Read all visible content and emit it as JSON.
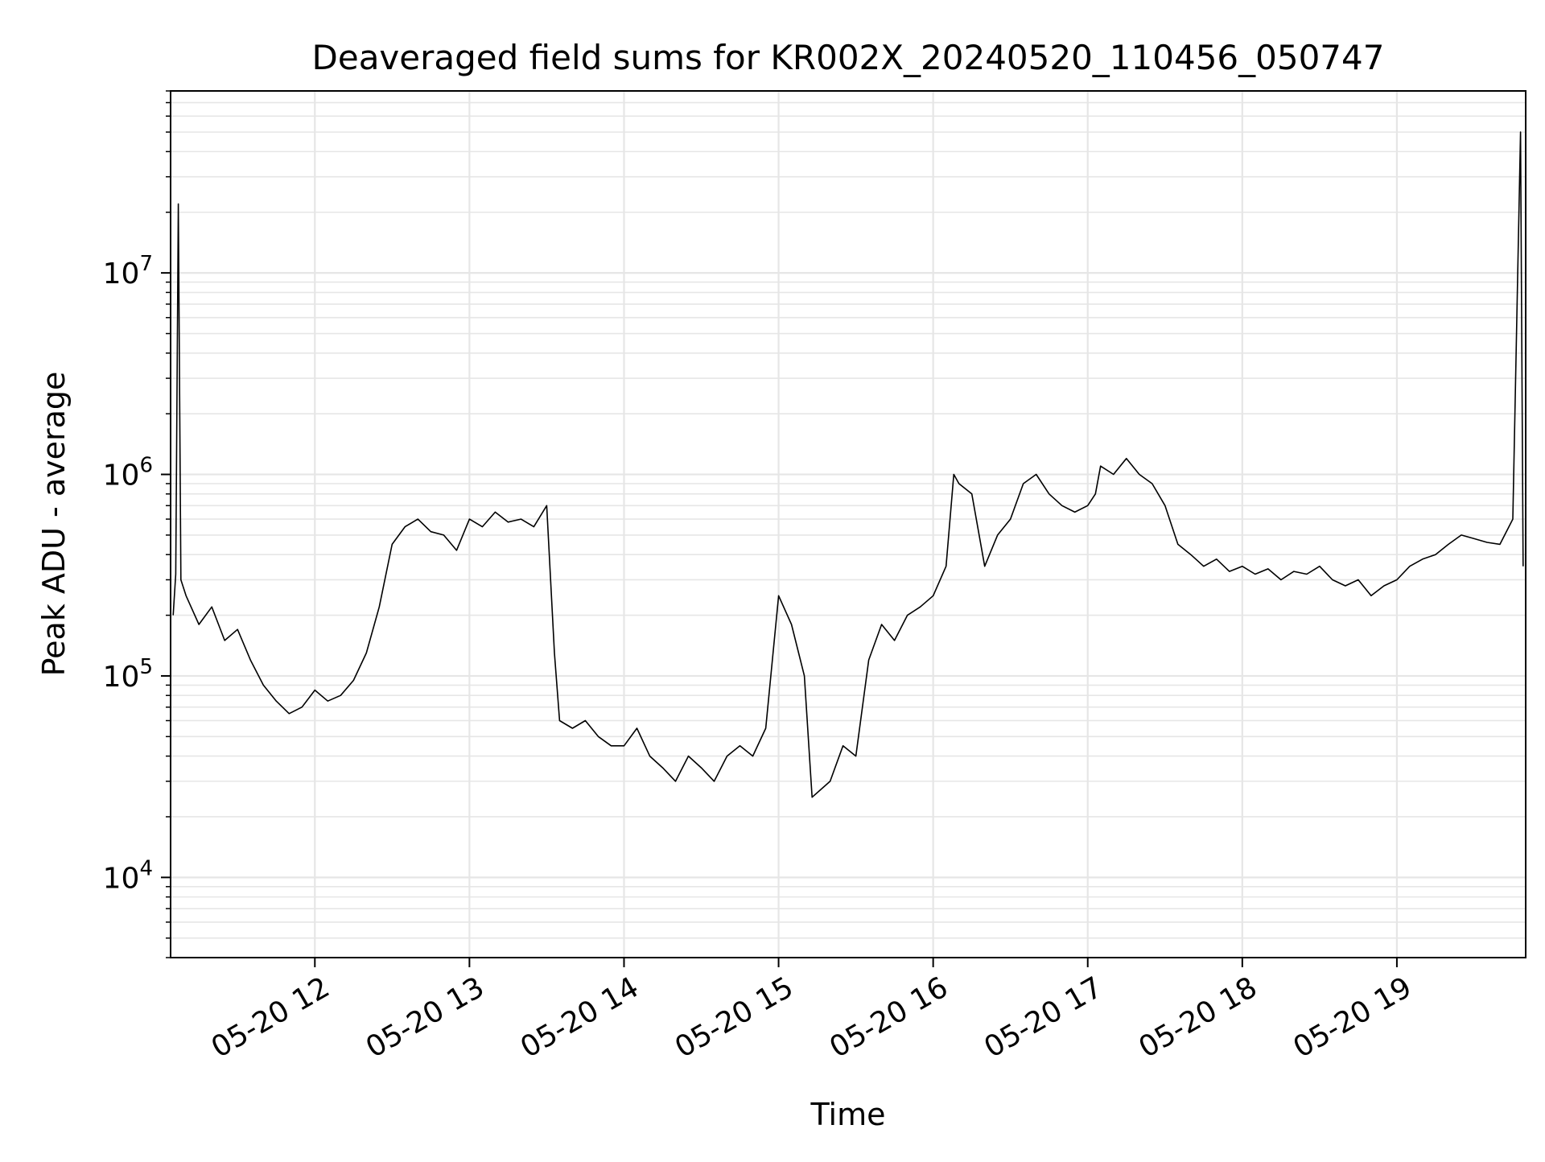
{
  "chart_data": {
    "type": "line",
    "title": "Deaveraged field sums for KR002X_20240520_110456_050747",
    "xlabel": "Time",
    "ylabel": "Peak ADU - average",
    "xscale": "time",
    "yscale": "log",
    "xlim": [
      "2024-05-20 11:04",
      "2024-05-20 19:50"
    ],
    "ylim": [
      4000,
      80000000
    ],
    "grid": "on",
    "line_color": "#000000",
    "x_ticks": [
      {
        "t": "2024-05-20 12:00",
        "label": "05-20 12"
      },
      {
        "t": "2024-05-20 13:00",
        "label": "05-20 13"
      },
      {
        "t": "2024-05-20 14:00",
        "label": "05-20 14"
      },
      {
        "t": "2024-05-20 15:00",
        "label": "05-20 15"
      },
      {
        "t": "2024-05-20 16:00",
        "label": "05-20 16"
      },
      {
        "t": "2024-05-20 17:00",
        "label": "05-20 17"
      },
      {
        "t": "2024-05-20 18:00",
        "label": "05-20 18"
      },
      {
        "t": "2024-05-20 19:00",
        "label": "05-20 19"
      }
    ],
    "y_ticks": [
      {
        "value": 10000,
        "base": "10",
        "exp": "4"
      },
      {
        "value": 100000,
        "base": "10",
        "exp": "5"
      },
      {
        "value": 1000000,
        "base": "10",
        "exp": "6"
      },
      {
        "value": 10000000,
        "base": "10",
        "exp": "7"
      }
    ],
    "series": [
      {
        "points": [
          [
            "2024-05-20 11:05",
            200000
          ],
          [
            "2024-05-20 11:06",
            320000
          ],
          [
            "2024-05-20 11:07",
            22000000
          ],
          [
            "2024-05-20 11:08",
            300000
          ],
          [
            "2024-05-20 11:10",
            250000
          ],
          [
            "2024-05-20 11:15",
            180000
          ],
          [
            "2024-05-20 11:20",
            220000
          ],
          [
            "2024-05-20 11:25",
            150000
          ],
          [
            "2024-05-20 11:30",
            170000
          ],
          [
            "2024-05-20 11:35",
            120000
          ],
          [
            "2024-05-20 11:40",
            90000
          ],
          [
            "2024-05-20 11:45",
            75000
          ],
          [
            "2024-05-20 11:50",
            65000
          ],
          [
            "2024-05-20 11:55",
            70000
          ],
          [
            "2024-05-20 12:00",
            85000
          ],
          [
            "2024-05-20 12:05",
            75000
          ],
          [
            "2024-05-20 12:10",
            80000
          ],
          [
            "2024-05-20 12:15",
            95000
          ],
          [
            "2024-05-20 12:20",
            130000
          ],
          [
            "2024-05-20 12:25",
            220000
          ],
          [
            "2024-05-20 12:30",
            450000
          ],
          [
            "2024-05-20 12:35",
            550000
          ],
          [
            "2024-05-20 12:40",
            600000
          ],
          [
            "2024-05-20 12:45",
            520000
          ],
          [
            "2024-05-20 12:50",
            500000
          ],
          [
            "2024-05-20 12:55",
            420000
          ],
          [
            "2024-05-20 13:00",
            600000
          ],
          [
            "2024-05-20 13:05",
            550000
          ],
          [
            "2024-05-20 13:10",
            650000
          ],
          [
            "2024-05-20 13:15",
            580000
          ],
          [
            "2024-05-20 13:20",
            600000
          ],
          [
            "2024-05-20 13:25",
            550000
          ],
          [
            "2024-05-20 13:30",
            700000
          ],
          [
            "2024-05-20 13:33",
            130000
          ],
          [
            "2024-05-20 13:35",
            60000
          ],
          [
            "2024-05-20 13:40",
            55000
          ],
          [
            "2024-05-20 13:45",
            60000
          ],
          [
            "2024-05-20 13:50",
            50000
          ],
          [
            "2024-05-20 13:55",
            45000
          ],
          [
            "2024-05-20 14:00",
            45000
          ],
          [
            "2024-05-20 14:05",
            55000
          ],
          [
            "2024-05-20 14:10",
            40000
          ],
          [
            "2024-05-20 14:15",
            35000
          ],
          [
            "2024-05-20 14:20",
            30000
          ],
          [
            "2024-05-20 14:25",
            40000
          ],
          [
            "2024-05-20 14:30",
            35000
          ],
          [
            "2024-05-20 14:35",
            30000
          ],
          [
            "2024-05-20 14:40",
            40000
          ],
          [
            "2024-05-20 14:45",
            45000
          ],
          [
            "2024-05-20 14:50",
            40000
          ],
          [
            "2024-05-20 14:55",
            55000
          ],
          [
            "2024-05-20 15:00",
            250000
          ],
          [
            "2024-05-20 15:05",
            180000
          ],
          [
            "2024-05-20 15:10",
            100000
          ],
          [
            "2024-05-20 15:13",
            25000
          ],
          [
            "2024-05-20 15:20",
            30000
          ],
          [
            "2024-05-20 15:25",
            45000
          ],
          [
            "2024-05-20 15:30",
            40000
          ],
          [
            "2024-05-20 15:35",
            120000
          ],
          [
            "2024-05-20 15:40",
            180000
          ],
          [
            "2024-05-20 15:45",
            150000
          ],
          [
            "2024-05-20 15:50",
            200000
          ],
          [
            "2024-05-20 15:55",
            220000
          ],
          [
            "2024-05-20 16:00",
            250000
          ],
          [
            "2024-05-20 16:05",
            350000
          ],
          [
            "2024-05-20 16:08",
            1000000
          ],
          [
            "2024-05-20 16:10",
            900000
          ],
          [
            "2024-05-20 16:15",
            800000
          ],
          [
            "2024-05-20 16:20",
            350000
          ],
          [
            "2024-05-20 16:25",
            500000
          ],
          [
            "2024-05-20 16:30",
            600000
          ],
          [
            "2024-05-20 16:35",
            900000
          ],
          [
            "2024-05-20 16:40",
            1000000
          ],
          [
            "2024-05-20 16:45",
            800000
          ],
          [
            "2024-05-20 16:50",
            700000
          ],
          [
            "2024-05-20 16:55",
            650000
          ],
          [
            "2024-05-20 17:00",
            700000
          ],
          [
            "2024-05-20 17:03",
            800000
          ],
          [
            "2024-05-20 17:05",
            1100000
          ],
          [
            "2024-05-20 17:10",
            1000000
          ],
          [
            "2024-05-20 17:15",
            1200000
          ],
          [
            "2024-05-20 17:20",
            1000000
          ],
          [
            "2024-05-20 17:25",
            900000
          ],
          [
            "2024-05-20 17:30",
            700000
          ],
          [
            "2024-05-20 17:35",
            450000
          ],
          [
            "2024-05-20 17:40",
            400000
          ],
          [
            "2024-05-20 17:45",
            350000
          ],
          [
            "2024-05-20 17:50",
            380000
          ],
          [
            "2024-05-20 17:55",
            330000
          ],
          [
            "2024-05-20 18:00",
            350000
          ],
          [
            "2024-05-20 18:05",
            320000
          ],
          [
            "2024-05-20 18:10",
            340000
          ],
          [
            "2024-05-20 18:15",
            300000
          ],
          [
            "2024-05-20 18:20",
            330000
          ],
          [
            "2024-05-20 18:25",
            320000
          ],
          [
            "2024-05-20 18:30",
            350000
          ],
          [
            "2024-05-20 18:35",
            300000
          ],
          [
            "2024-05-20 18:40",
            280000
          ],
          [
            "2024-05-20 18:45",
            300000
          ],
          [
            "2024-05-20 18:50",
            250000
          ],
          [
            "2024-05-20 18:55",
            280000
          ],
          [
            "2024-05-20 19:00",
            300000
          ],
          [
            "2024-05-20 19:05",
            350000
          ],
          [
            "2024-05-20 19:10",
            380000
          ],
          [
            "2024-05-20 19:15",
            400000
          ],
          [
            "2024-05-20 19:20",
            450000
          ],
          [
            "2024-05-20 19:25",
            500000
          ],
          [
            "2024-05-20 19:30",
            480000
          ],
          [
            "2024-05-20 19:35",
            460000
          ],
          [
            "2024-05-20 19:40",
            450000
          ],
          [
            "2024-05-20 19:45",
            600000
          ],
          [
            "2024-05-20 19:48",
            50000000
          ],
          [
            "2024-05-20 19:49",
            350000
          ]
        ]
      }
    ]
  }
}
